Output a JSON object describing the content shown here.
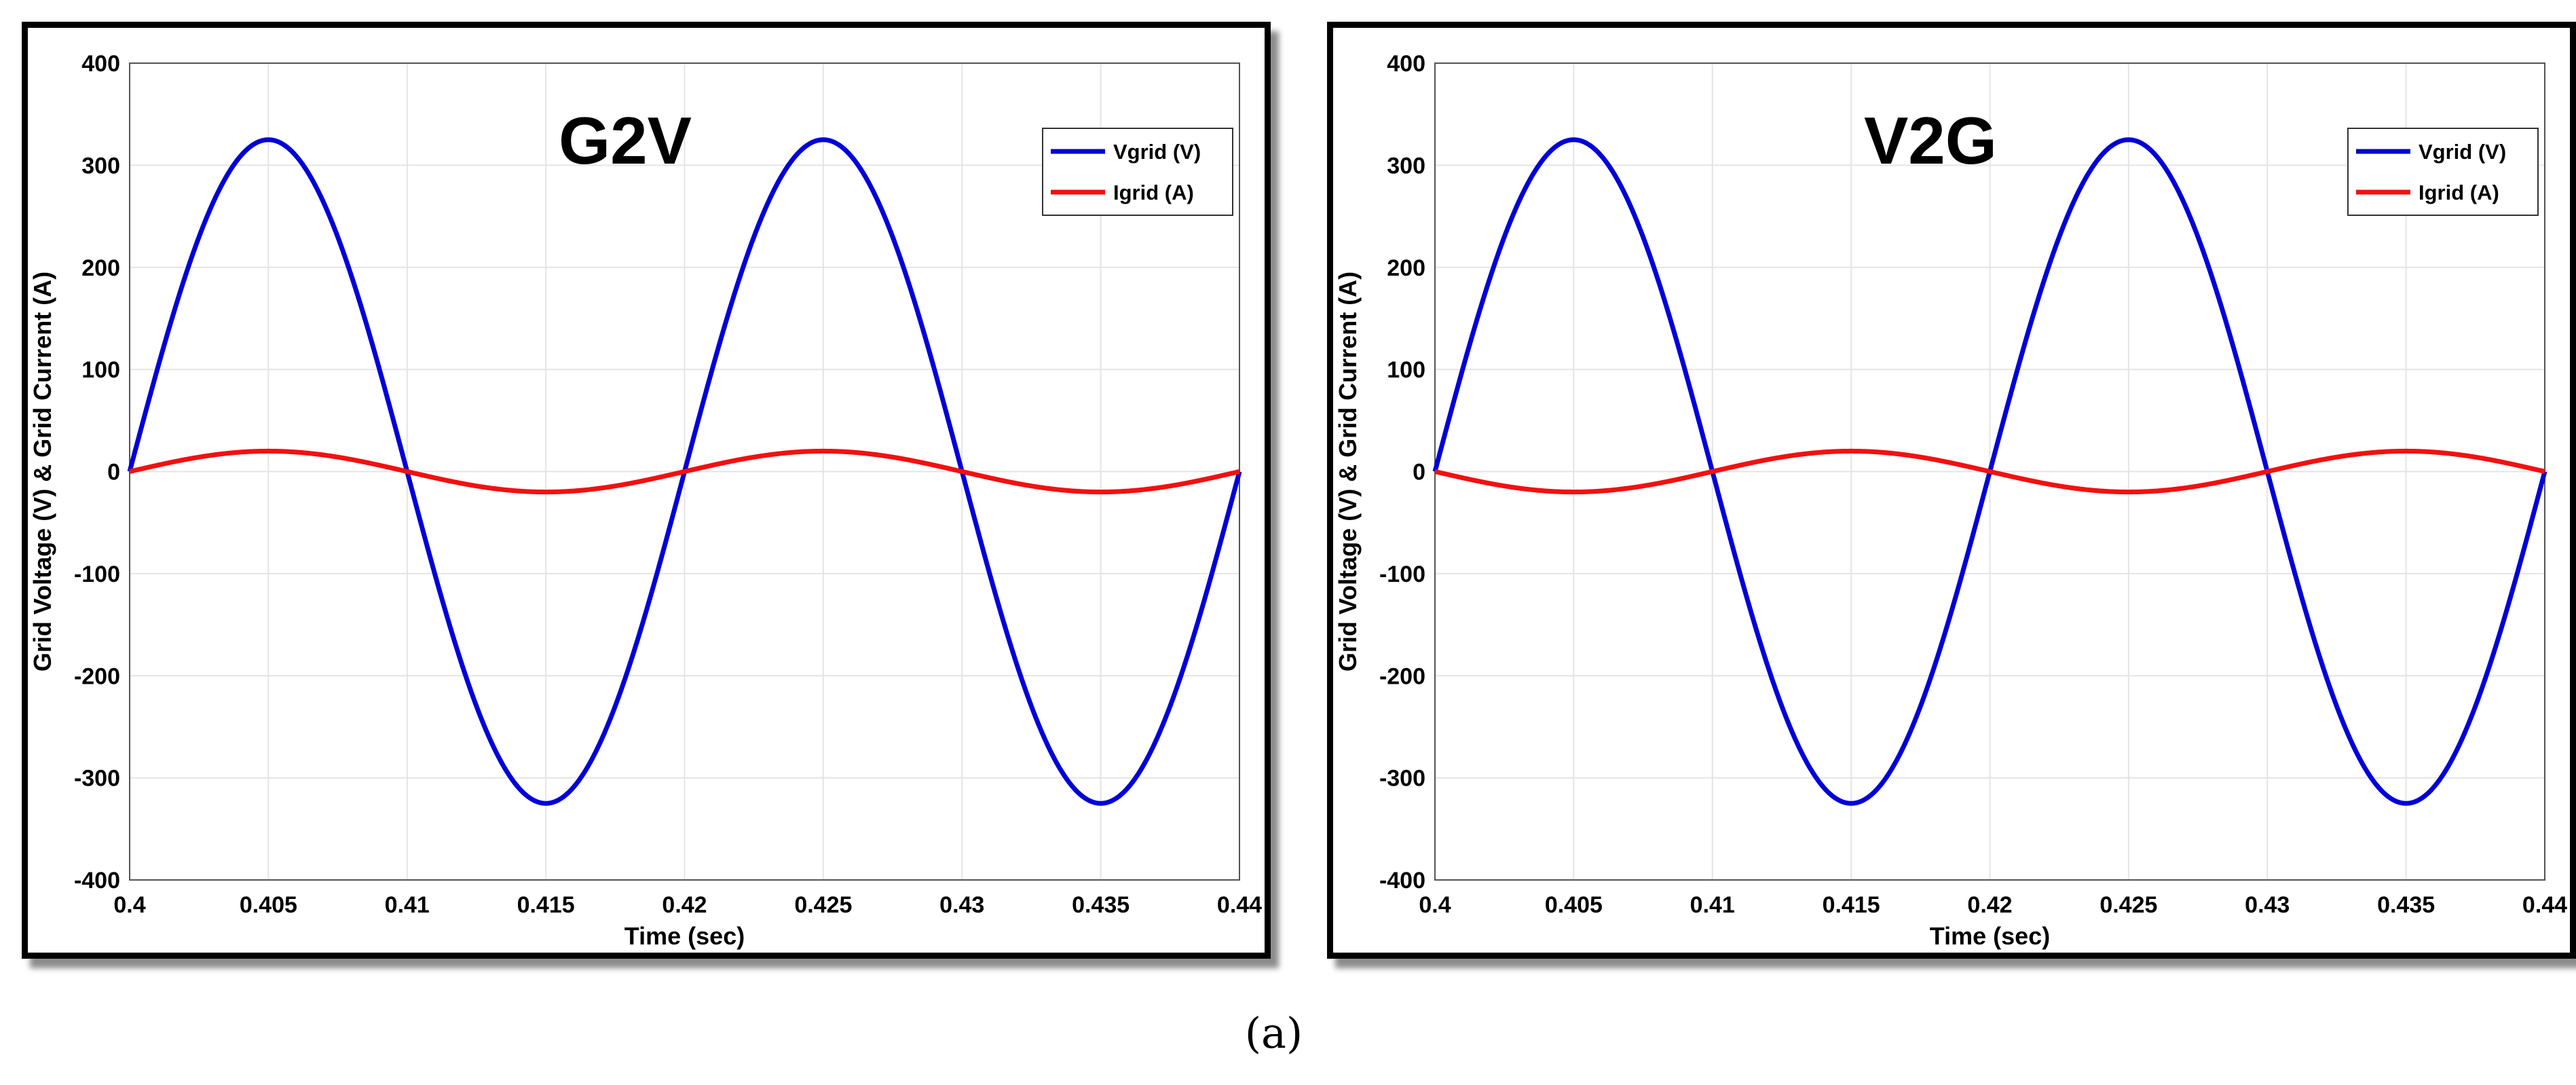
{
  "colors": {
    "voltage": "#0000d8",
    "current": "#f21010",
    "grid": "#e4e4e4",
    "axis": "#000000"
  },
  "caption": "(a)",
  "chart_data": [
    {
      "type": "line",
      "title": "G2V",
      "xlabel": "Time (sec)",
      "ylabel": "Grid Voltage (V) & Grid Current (A)",
      "xlim": [
        0.4,
        0.44
      ],
      "ylim": [
        -400,
        400
      ],
      "xticks": [
        0.4,
        0.405,
        0.41,
        0.415,
        0.42,
        0.425,
        0.43,
        0.435,
        0.44
      ],
      "xtick_labels": [
        "0.4",
        "0.405",
        "0.41",
        "0.415",
        "0.42",
        "0.425",
        "0.43",
        "0.435",
        "0.44"
      ],
      "yticks": [
        400,
        300,
        200,
        100,
        0,
        -100,
        -200,
        -300,
        -400
      ],
      "ytick_labels": [
        "400",
        "300",
        "200",
        "100",
        "0",
        "-100",
        "-200",
        "-300",
        "-400"
      ],
      "grid": true,
      "legend_position": "top-right",
      "series": [
        {
          "name": "Vgrid (V)",
          "color": "#0000d8",
          "amplitude": 325,
          "frequency_hz": 50,
          "phase_deg": 0,
          "x": [
            0.4,
            0.405,
            0.41,
            0.415,
            0.42,
            0.425,
            0.43,
            0.435,
            0.44
          ],
          "y": [
            0,
            325,
            0,
            -325,
            0,
            325,
            0,
            -325,
            0
          ]
        },
        {
          "name": "Igrid (A)",
          "color": "#f21010",
          "amplitude": 20,
          "frequency_hz": 50,
          "phase_deg": 0,
          "x": [
            0.4,
            0.405,
            0.41,
            0.415,
            0.42,
            0.425,
            0.43,
            0.435,
            0.44
          ],
          "y": [
            0,
            20,
            0,
            -20,
            0,
            20,
            0,
            -20,
            0
          ]
        }
      ]
    },
    {
      "type": "line",
      "title": "V2G",
      "xlabel": "Time (sec)",
      "ylabel": "Grid Voltage (V) & Grid Current (A)",
      "xlim": [
        0.4,
        0.44
      ],
      "ylim": [
        -400,
        400
      ],
      "xticks": [
        0.4,
        0.405,
        0.41,
        0.415,
        0.42,
        0.425,
        0.43,
        0.435,
        0.44
      ],
      "xtick_labels": [
        "0.4",
        "0.405",
        "0.41",
        "0.415",
        "0.42",
        "0.425",
        "0.43",
        "0.435",
        "0.44"
      ],
      "yticks": [
        400,
        300,
        200,
        100,
        0,
        -100,
        -200,
        -300,
        -400
      ],
      "ytick_labels": [
        "400",
        "300",
        "200",
        "100",
        "0",
        "-100",
        "-200",
        "-300",
        "-400"
      ],
      "grid": true,
      "legend_position": "top-right",
      "series": [
        {
          "name": "Vgrid (V)",
          "color": "#0000d8",
          "amplitude": 325,
          "frequency_hz": 50,
          "phase_deg": 0,
          "x": [
            0.4,
            0.405,
            0.41,
            0.415,
            0.42,
            0.425,
            0.43,
            0.435,
            0.44
          ],
          "y": [
            0,
            325,
            0,
            -325,
            0,
            325,
            0,
            -325,
            0
          ]
        },
        {
          "name": "Igrid (A)",
          "color": "#f21010",
          "amplitude": 20,
          "frequency_hz": 50,
          "phase_deg": 180,
          "x": [
            0.4,
            0.405,
            0.41,
            0.415,
            0.42,
            0.425,
            0.43,
            0.435,
            0.44
          ],
          "y": [
            0,
            -20,
            0,
            20,
            0,
            -20,
            0,
            20,
            0
          ]
        }
      ]
    }
  ]
}
